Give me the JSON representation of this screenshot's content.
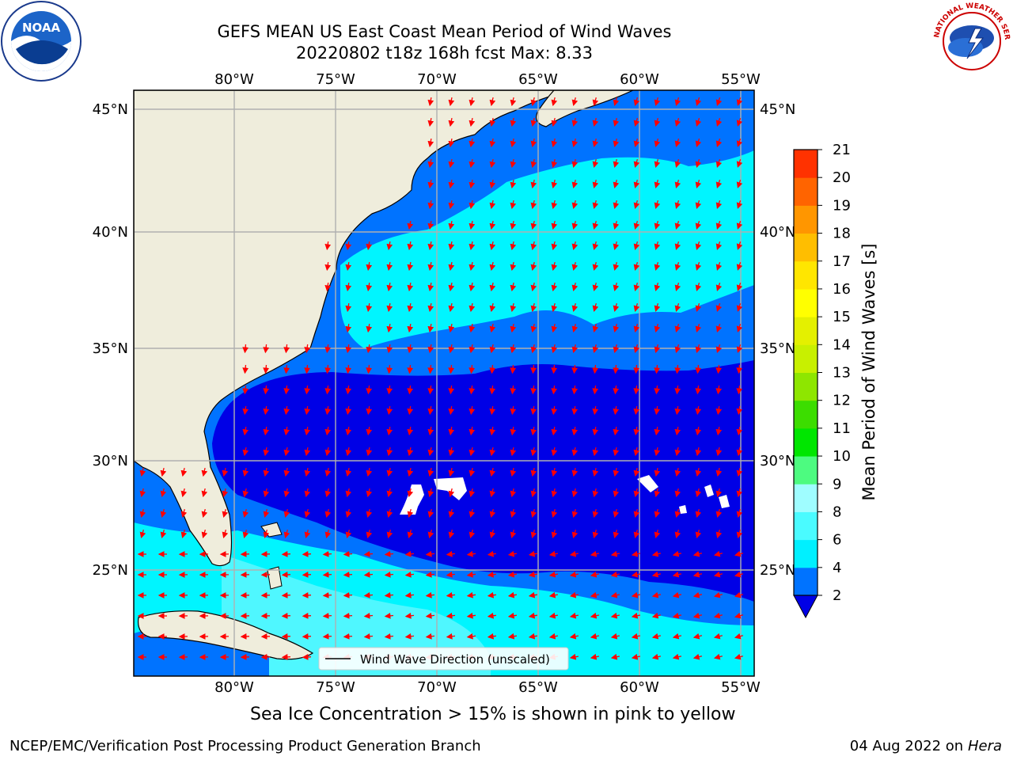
{
  "header": {
    "title_line1": "GEFS MEAN US East Coast Mean Period of Wind Waves",
    "title_line2": "20220802 t18z 168h fcst   Max: 8.33"
  },
  "logos": {
    "left": {
      "icon": "noaa-logo-icon",
      "text": "NOAA"
    },
    "right": {
      "icon": "nws-logo-icon",
      "text": "NATIONAL WEATHER SERVICE"
    }
  },
  "map": {
    "lon_labels": [
      "80°W",
      "75°W",
      "70°W",
      "65°W",
      "60°W",
      "55°W"
    ],
    "lat_labels": [
      "45°N",
      "40°N",
      "35°N",
      "30°N",
      "25°N"
    ],
    "legend_label": "Wind Wave Direction (unscaled)",
    "colors": {
      "land": "#efeddc",
      "band_2_4": "#0073ff",
      "band_lt_2": "#0000e6",
      "band_4_6": "#00f5ff",
      "band_6_8": "#4ff7ff",
      "arrow": "#ff0000",
      "grid": "#b0b0b0"
    }
  },
  "colorbar": {
    "label": "Mean Period of Wind Waves [s]",
    "ticks": [
      "2",
      "4",
      "6",
      "8",
      "9",
      "10",
      "11",
      "12",
      "13",
      "14",
      "15",
      "16",
      "17",
      "18",
      "19",
      "20",
      "21"
    ],
    "colors": [
      "#0073ff",
      "#00f0ff",
      "#4afbff",
      "#9ffdff",
      "#4dfb80",
      "#00e600",
      "#3cdd00",
      "#8ee600",
      "#c8f000",
      "#e4f000",
      "#ffff00",
      "#ffe600",
      "#ffbe00",
      "#ff9600",
      "#ff6400",
      "#ff3200"
    ]
  },
  "footer": {
    "note": "Sea Ice Concentration > 15% is shown in pink to yellow",
    "left": "NCEP/EMC/Verification Post Processing Product Generation Branch",
    "right_date": "04 Aug 2022 on",
    "right_machine": "Hera"
  }
}
